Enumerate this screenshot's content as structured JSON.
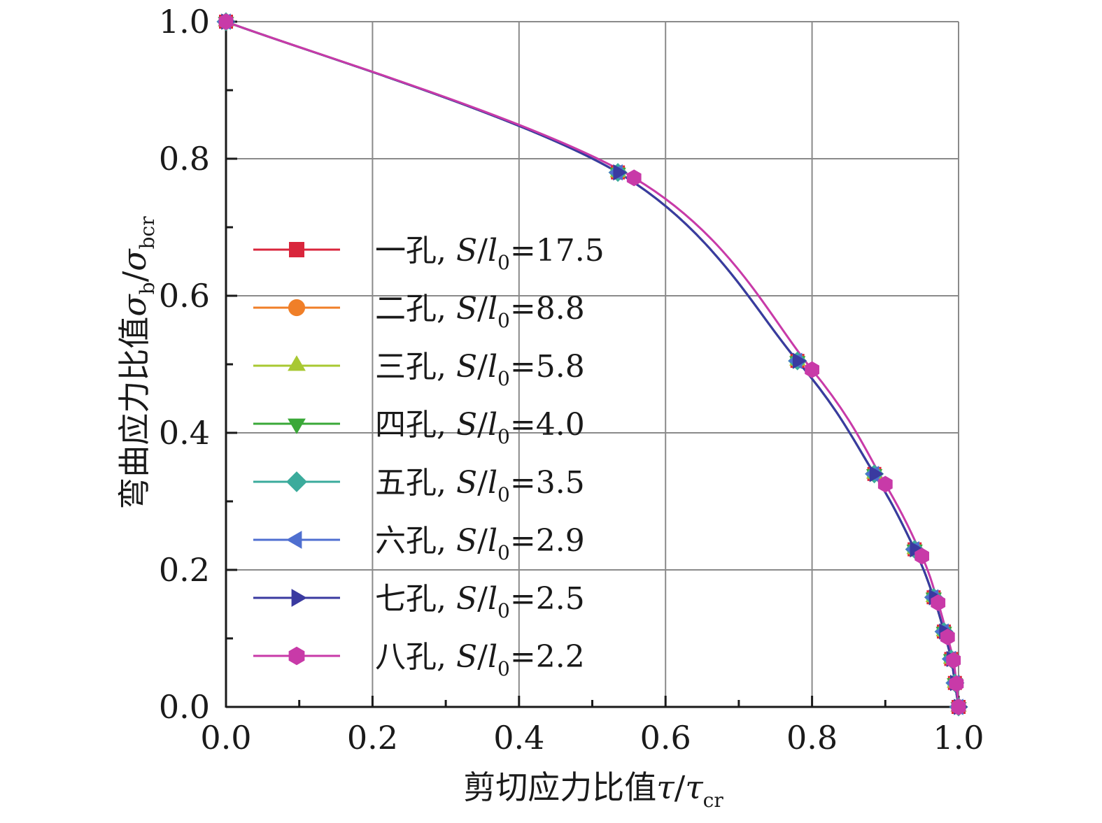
{
  "chart_data": {
    "type": "line",
    "xlabel": {
      "text": "剪切应力比值",
      "symbol": "τ",
      "sep": "/",
      "symbol2": "τ",
      "sub2": "cr"
    },
    "ylabel": {
      "text": "弯曲应力比值",
      "symbol": "σ",
      "sub": "b",
      "sep": "/",
      "symbol2": "σ",
      "sub2": "bcr"
    },
    "xlim": [
      0.0,
      1.0
    ],
    "ylim": [
      0.0,
      1.0
    ],
    "xticks": [
      "0.0",
      "0.2",
      "0.4",
      "0.6",
      "0.8",
      "1.0"
    ],
    "yticks": [
      "0.0",
      "0.2",
      "0.4",
      "0.6",
      "0.8",
      "1.0"
    ],
    "grid": true,
    "legend_position": "center-left",
    "series": [
      {
        "name": "一孔, ",
        "eq": "=17.5",
        "color": "#d9263c",
        "marker": "square",
        "x": [
          0.0,
          0.535,
          0.78,
          0.885,
          0.94,
          0.966,
          0.98,
          0.99,
          0.995,
          1.0
        ],
        "y": [
          1.0,
          0.78,
          0.505,
          0.34,
          0.23,
          0.16,
          0.11,
          0.07,
          0.035,
          0.0
        ]
      },
      {
        "name": "二孔, ",
        "eq": "=8.8",
        "color": "#f07f28",
        "marker": "circle",
        "x": [
          0.0,
          0.535,
          0.78,
          0.885,
          0.94,
          0.966,
          0.98,
          0.99,
          0.995,
          1.0
        ],
        "y": [
          1.0,
          0.78,
          0.505,
          0.34,
          0.23,
          0.16,
          0.11,
          0.07,
          0.035,
          0.0
        ]
      },
      {
        "name": "三孔, ",
        "eq": "=5.8",
        "color": "#a8c832",
        "marker": "triangle-up",
        "x": [
          0.0,
          0.535,
          0.78,
          0.885,
          0.94,
          0.966,
          0.98,
          0.99,
          0.995,
          1.0
        ],
        "y": [
          1.0,
          0.78,
          0.505,
          0.34,
          0.23,
          0.16,
          0.11,
          0.07,
          0.035,
          0.0
        ]
      },
      {
        "name": "四孔, ",
        "eq": "=4.0",
        "color": "#3aa838",
        "marker": "triangle-down",
        "x": [
          0.0,
          0.535,
          0.78,
          0.885,
          0.94,
          0.966,
          0.98,
          0.99,
          0.995,
          1.0
        ],
        "y": [
          1.0,
          0.78,
          0.505,
          0.34,
          0.23,
          0.16,
          0.11,
          0.07,
          0.035,
          0.0
        ]
      },
      {
        "name": "五孔, ",
        "eq": "=3.5",
        "color": "#3bab9c",
        "marker": "diamond",
        "x": [
          0.0,
          0.535,
          0.78,
          0.885,
          0.94,
          0.966,
          0.98,
          0.99,
          0.995,
          1.0
        ],
        "y": [
          1.0,
          0.78,
          0.505,
          0.34,
          0.23,
          0.16,
          0.11,
          0.07,
          0.035,
          0.0
        ]
      },
      {
        "name": "六孔, ",
        "eq": "=2.9",
        "color": "#4f6fd0",
        "marker": "triangle-left",
        "x": [
          0.0,
          0.535,
          0.78,
          0.885,
          0.94,
          0.966,
          0.98,
          0.99,
          0.995,
          1.0
        ],
        "y": [
          1.0,
          0.78,
          0.505,
          0.34,
          0.23,
          0.16,
          0.11,
          0.07,
          0.035,
          0.0
        ]
      },
      {
        "name": "七孔, ",
        "eq": "=2.5",
        "color": "#3a3aa0",
        "marker": "triangle-right",
        "x": [
          0.0,
          0.535,
          0.78,
          0.885,
          0.94,
          0.966,
          0.98,
          0.99,
          0.995,
          1.0
        ],
        "y": [
          1.0,
          0.78,
          0.505,
          0.34,
          0.23,
          0.16,
          0.11,
          0.07,
          0.035,
          0.0
        ]
      },
      {
        "name": "八孔, ",
        "eq": "=2.2",
        "color": "#c83aa8",
        "marker": "hexagon",
        "x": [
          0.0,
          0.557,
          0.8,
          0.9,
          0.95,
          0.972,
          0.985,
          0.993,
          0.997,
          1.0
        ],
        "y": [
          1.0,
          0.772,
          0.492,
          0.325,
          0.22,
          0.152,
          0.102,
          0.068,
          0.034,
          0.0
        ]
      }
    ],
    "legend_symbol": {
      "S": "S",
      "slash": "/",
      "l": "l",
      "sub": "0"
    }
  }
}
